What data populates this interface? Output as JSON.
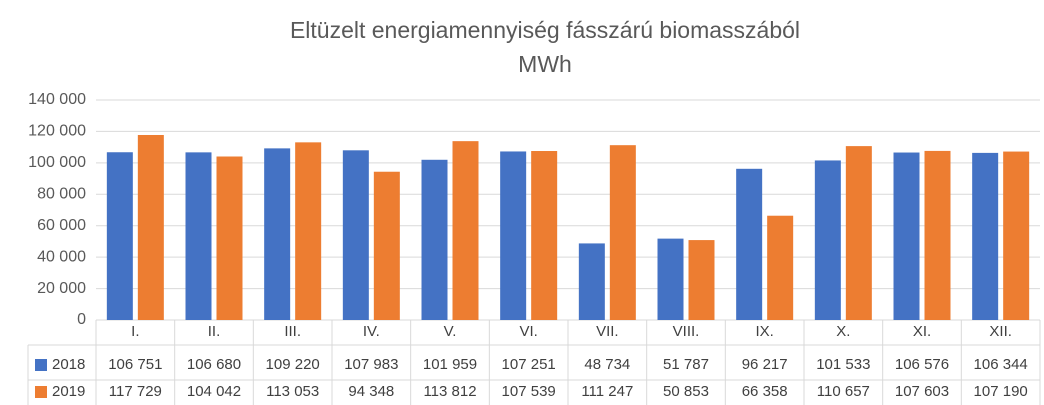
{
  "chart_data": {
    "type": "bar",
    "title": "Eltüzelt energiamennyiség fásszárú biomasszából",
    "subtitle": "MWh",
    "categories": [
      "I.",
      "II.",
      "III.",
      "IV.",
      "V.",
      "VI.",
      "VII.",
      "VIII.",
      "IX.",
      "X.",
      "XI.",
      "XII."
    ],
    "series": [
      {
        "name": "2018",
        "color": "#4472c4",
        "values": [
          106751,
          106680,
          109220,
          107983,
          101959,
          107251,
          48734,
          51787,
          96217,
          101533,
          106576,
          106344
        ],
        "value_labels": [
          "106 751",
          "106 680",
          "109 220",
          "107 983",
          "101 959",
          "107 251",
          "48 734",
          "51 787",
          "96 217",
          "101 533",
          "106 576",
          "106 344"
        ]
      },
      {
        "name": "2019",
        "color": "#ed7d31",
        "values": [
          117729,
          104042,
          113053,
          94348,
          113812,
          107539,
          111247,
          50853,
          66358,
          110657,
          107603,
          107190
        ],
        "value_labels": [
          "117 729",
          "104 042",
          "113 053",
          "94 348",
          "113 812",
          "107 539",
          "111 247",
          "50 853",
          "66 358",
          "110 657",
          "107 603",
          "107 190"
        ]
      }
    ],
    "ylim": [
      0,
      140000
    ],
    "yticks": [
      0,
      {
        "value": 20000,
        "label": "20 000"
      },
      {
        "value": 40000,
        "label": "40 000"
      },
      {
        "value": 60000,
        "label": "60 000"
      },
      {
        "value": 80000,
        "label": "80 000"
      },
      {
        "value": 100000,
        "label": "100 000"
      },
      {
        "value": 120000,
        "label": "120 000"
      },
      {
        "value": 140000,
        "label": "140 000"
      }
    ],
    "grid": true
  }
}
